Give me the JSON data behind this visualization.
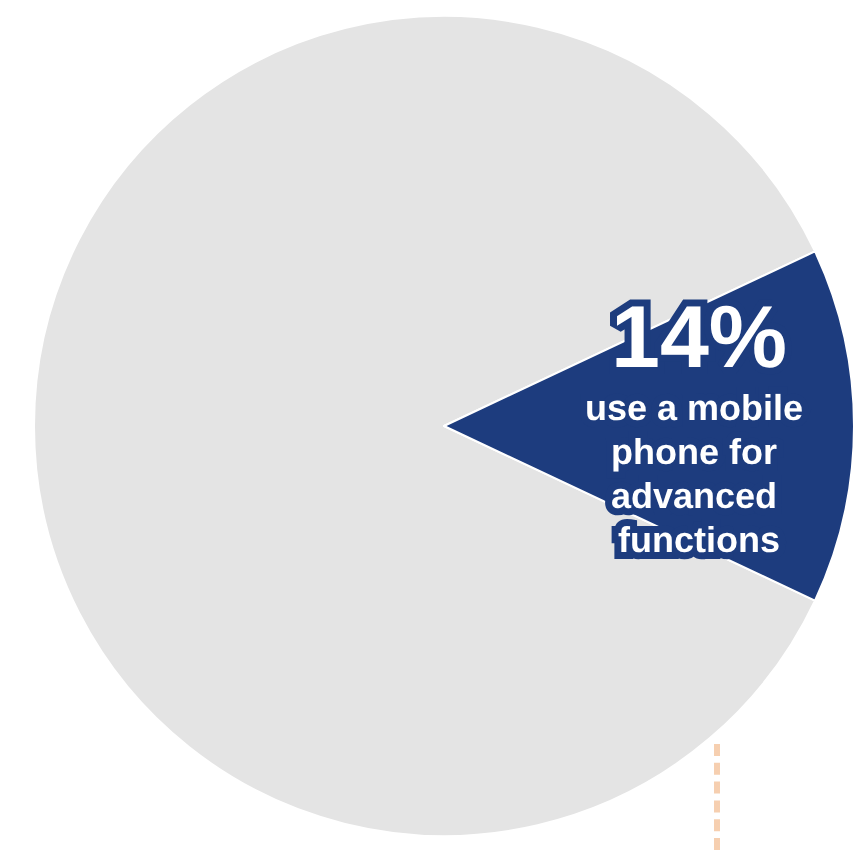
{
  "chart_data": {
    "type": "pie",
    "categories": [
      null,
      "use a mobile phone for advanced functions"
    ],
    "values": [
      86,
      14
    ],
    "colors": [
      "#e4e4e4",
      "#1d3c7e"
    ],
    "value_labels": [
      null,
      "14%"
    ]
  }
}
